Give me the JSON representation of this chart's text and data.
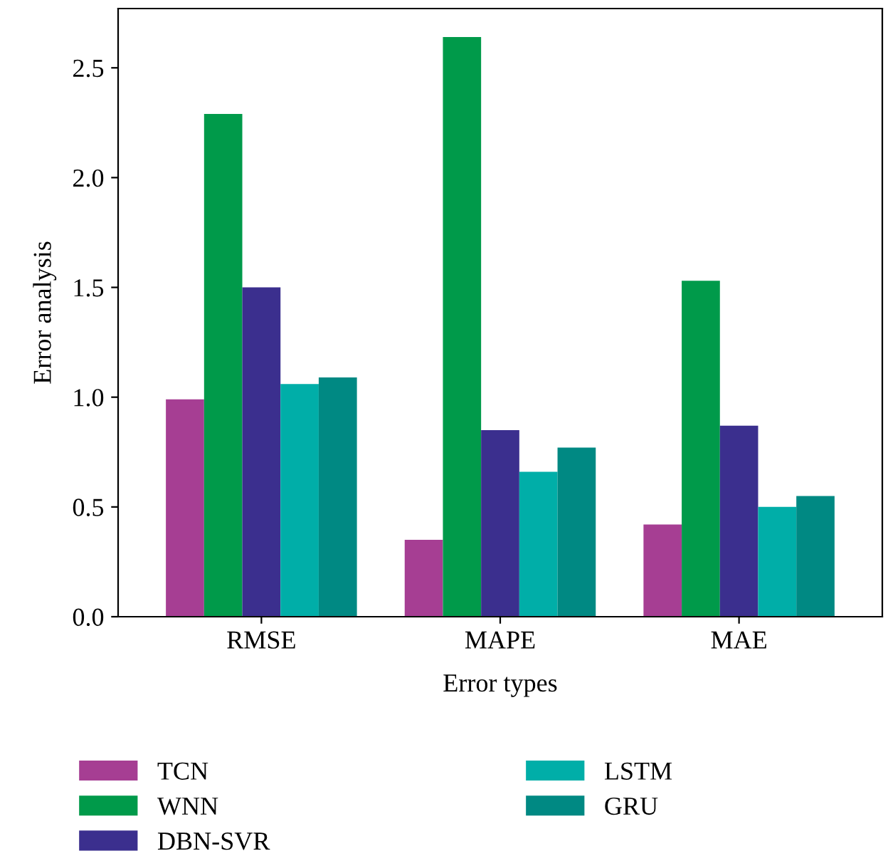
{
  "chart_data": {
    "type": "bar",
    "xlabel": "Error types",
    "ylabel": "Error analysis",
    "categories": [
      "RMSE",
      "MAPE",
      "MAE"
    ],
    "series": [
      {
        "name": "TCN",
        "color": "#a63e93",
        "values": [
          0.99,
          0.35,
          0.42
        ]
      },
      {
        "name": "WNN",
        "color": "#009a4a",
        "values": [
          2.29,
          2.64,
          1.53
        ]
      },
      {
        "name": "DBN-SVR",
        "color": "#3b2f8e",
        "values": [
          1.5,
          0.85,
          0.87
        ]
      },
      {
        "name": "LSTM",
        "color": "#00aea8",
        "values": [
          1.06,
          0.66,
          0.5
        ]
      },
      {
        "name": "GRU",
        "color": "#008983",
        "values": [
          1.09,
          0.77,
          0.55
        ]
      }
    ],
    "ylim": [
      0,
      2.77
    ],
    "yticks": [
      {
        "value": 0,
        "label": "0.0"
      },
      {
        "value": 0.5,
        "label": "0.5"
      },
      {
        "value": 1,
        "label": "1.0"
      },
      {
        "value": 1.5,
        "label": "1.5"
      },
      {
        "value": 2,
        "label": "2.0"
      },
      {
        "value": 2.5,
        "label": "2.5"
      }
    ],
    "grid": false,
    "legend": "bottom"
  }
}
